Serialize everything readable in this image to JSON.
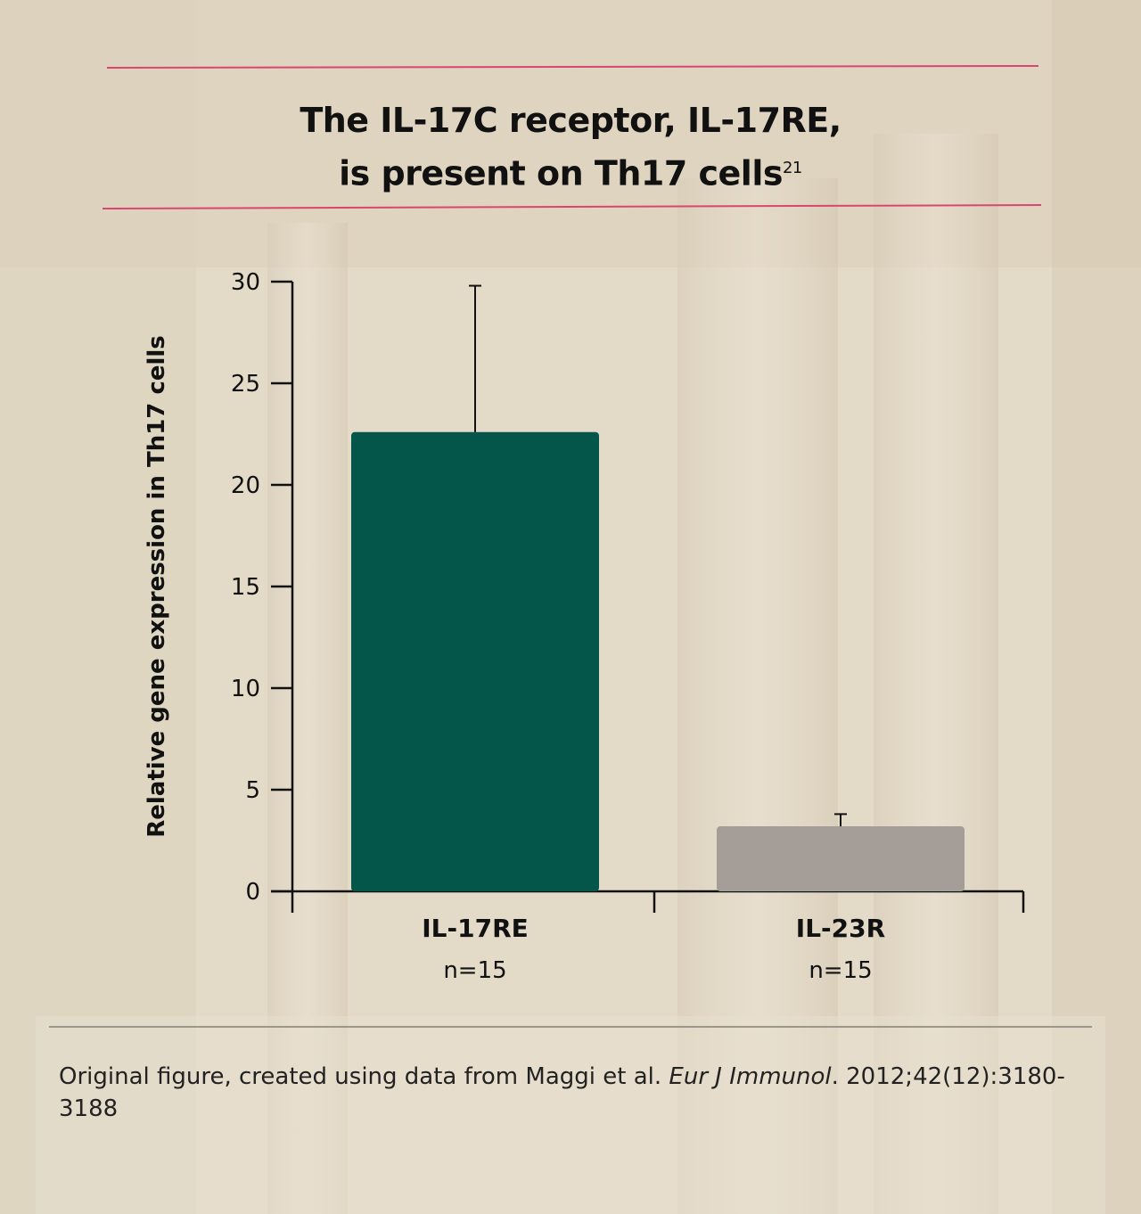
{
  "title": {
    "line1": "The IL-17C receptor, IL-17RE,",
    "line2": "is present on Th17 cells",
    "superscript": "21"
  },
  "footnote": {
    "prefix": "Original figure, created using data from Maggi et al. ",
    "journal": "Eur J Immunol",
    "suffix": ". 2012;42(12):3180-3188"
  },
  "colors": {
    "accent_rule": "#d9466f",
    "bar_il17re": "#04564a",
    "bar_il23r": "#a59d97",
    "axis": "#111111"
  },
  "chart_data": {
    "type": "bar",
    "categories": [
      "IL-17RE",
      "IL-23R"
    ],
    "category_sublabels": [
      "n=15",
      "n=15"
    ],
    "values": [
      22.6,
      3.2
    ],
    "error_upper": [
      29.8,
      3.8
    ],
    "ylabel": "Relative gene expression in Th17 cells",
    "ylim": [
      0,
      30
    ],
    "yticks": [
      0,
      5,
      10,
      15,
      20,
      25,
      30
    ],
    "grid": false
  }
}
